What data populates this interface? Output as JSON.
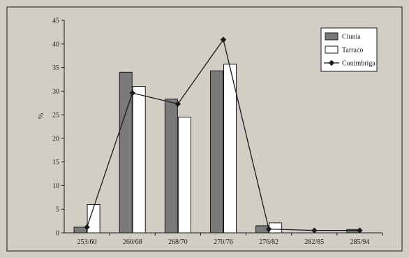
{
  "chart_data": {
    "type": "bar",
    "title": "",
    "xlabel": "",
    "ylabel": "%",
    "ylim": [
      0,
      45
    ],
    "yticks": [
      0,
      5,
      10,
      15,
      20,
      25,
      30,
      35,
      40,
      45
    ],
    "categories": [
      "253/60",
      "260/68",
      "268/70",
      "270/76",
      "276/82",
      "282/85",
      "285/94"
    ],
    "series": [
      {
        "name": "Clunia",
        "kind": "bar",
        "color": "#7a7a7a",
        "values": [
          1.2,
          34,
          28.3,
          34.3,
          1.5,
          0,
          0.7
        ]
      },
      {
        "name": "Tarraco",
        "kind": "bar",
        "color": "#ffffff",
        "values": [
          6,
          31,
          24.5,
          35.7,
          2.1,
          0,
          0
        ]
      },
      {
        "name": "Conimbriga",
        "kind": "line",
        "color": "#1a1a1a",
        "values": [
          1.2,
          29.6,
          27.3,
          40.9,
          0.8,
          0.5,
          0.5
        ]
      }
    ],
    "legend_position": "top-right",
    "grid": false
  }
}
